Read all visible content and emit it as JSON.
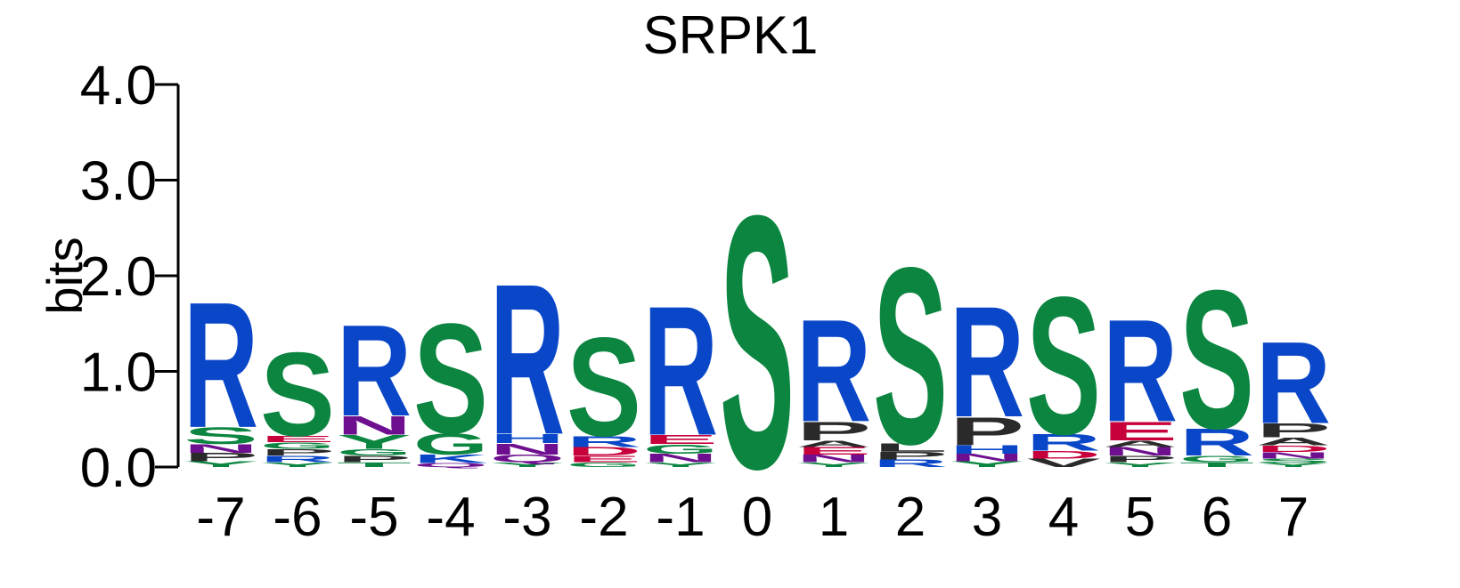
{
  "chart_data": {
    "type": "sequence-logo",
    "title": "SRPK1",
    "ylabel": "bits",
    "xlabel": "",
    "ylim": [
      0,
      4.0
    ],
    "y_ticks": [
      "0.0",
      "1.0",
      "2.0",
      "3.0",
      "4.0"
    ],
    "y_tick_values": [
      0,
      1,
      2,
      3,
      4
    ],
    "colors": {
      "S": "#0b8540",
      "G": "#0b8540",
      "T": "#0b8540",
      "Y": "#0b8540",
      "C": "#0b8540",
      "R": "#0a47c8",
      "K": "#0a47c8",
      "H": "#0a47c8",
      "E": "#c7003b",
      "D": "#c7003b",
      "N": "#6e0f8f",
      "Q": "#6e0f8f",
      "P": "#2a2a2a",
      "A": "#2a2a2a",
      "L": "#2a2a2a",
      "V": "#2a2a2a",
      "I": "#2a2a2a",
      "M": "#2a2a2a",
      "F": "#2a2a2a",
      "W": "#2a2a2a"
    },
    "positions": [
      {
        "label": "-7",
        "stack": [
          [
            "Y",
            0.06
          ],
          [
            "P",
            0.09
          ],
          [
            "N",
            0.09
          ],
          [
            "S",
            0.18
          ],
          [
            "R",
            1.35
          ]
        ]
      },
      {
        "label": "-6",
        "stack": [
          [
            "Y",
            0.05
          ],
          [
            "R",
            0.07
          ],
          [
            "P",
            0.07
          ],
          [
            "G",
            0.07
          ],
          [
            "E",
            0.07
          ],
          [
            "S",
            0.9
          ]
        ]
      },
      {
        "label": "-5",
        "stack": [
          [
            "T",
            0.05
          ],
          [
            "P",
            0.07
          ],
          [
            "G",
            0.07
          ],
          [
            "Y",
            0.15
          ],
          [
            "N",
            0.2
          ],
          [
            "R",
            0.98
          ]
        ]
      },
      {
        "label": "-4",
        "stack": [
          [
            "Q",
            0.04
          ],
          [
            "K",
            0.09
          ],
          [
            "G",
            0.23
          ],
          [
            "S",
            1.18
          ]
        ]
      },
      {
        "label": "-3",
        "stack": [
          [
            "Y",
            0.05
          ],
          [
            "Q",
            0.08
          ],
          [
            "N",
            0.12
          ],
          [
            "H",
            0.1
          ],
          [
            "R",
            1.62
          ]
        ]
      },
      {
        "label": "-2",
        "stack": [
          [
            "G",
            0.05
          ],
          [
            "E",
            0.07
          ],
          [
            "D",
            0.09
          ],
          [
            "R",
            0.12
          ],
          [
            "S",
            1.06
          ]
        ]
      },
      {
        "label": "-1",
        "stack": [
          [
            "Y",
            0.05
          ],
          [
            "N",
            0.09
          ],
          [
            "G",
            0.1
          ],
          [
            "E",
            0.1
          ],
          [
            "R",
            1.39
          ]
        ]
      },
      {
        "label": "0",
        "stack": [
          [
            "S",
            2.72
          ]
        ]
      },
      {
        "label": "1",
        "stack": [
          [
            "Y",
            0.05
          ],
          [
            "N",
            0.08
          ],
          [
            "E",
            0.08
          ],
          [
            "A",
            0.07
          ],
          [
            "P",
            0.2
          ],
          [
            "R",
            1.1
          ]
        ]
      },
      {
        "label": "2",
        "stack": [
          [
            "R",
            0.08
          ],
          [
            "P",
            0.08
          ],
          [
            "L",
            0.09
          ],
          [
            "S",
            1.9
          ]
        ]
      },
      {
        "label": "3",
        "stack": [
          [
            "Y",
            0.06
          ],
          [
            "N",
            0.08
          ],
          [
            "H",
            0.09
          ],
          [
            "P",
            0.3
          ],
          [
            "R",
            1.19
          ]
        ]
      },
      {
        "label": "4",
        "stack": [
          [
            "V",
            0.09
          ],
          [
            "D",
            0.08
          ],
          [
            "R",
            0.18
          ],
          [
            "S",
            1.48
          ]
        ]
      },
      {
        "label": "5",
        "stack": [
          [
            "Y",
            0.05
          ],
          [
            "P",
            0.07
          ],
          [
            "N",
            0.09
          ],
          [
            "A",
            0.07
          ],
          [
            "E",
            0.2
          ],
          [
            "R",
            1.1
          ]
        ]
      },
      {
        "label": "6",
        "stack": [
          [
            "T",
            0.05
          ],
          [
            "G",
            0.07
          ],
          [
            "R",
            0.29
          ],
          [
            "S",
            1.49
          ]
        ]
      },
      {
        "label": "7",
        "stack": [
          [
            "Y",
            0.04
          ],
          [
            "S",
            0.05
          ],
          [
            "N",
            0.07
          ],
          [
            "D",
            0.07
          ],
          [
            "A",
            0.08
          ],
          [
            "P",
            0.15
          ],
          [
            "R",
            0.88
          ]
        ]
      }
    ]
  }
}
